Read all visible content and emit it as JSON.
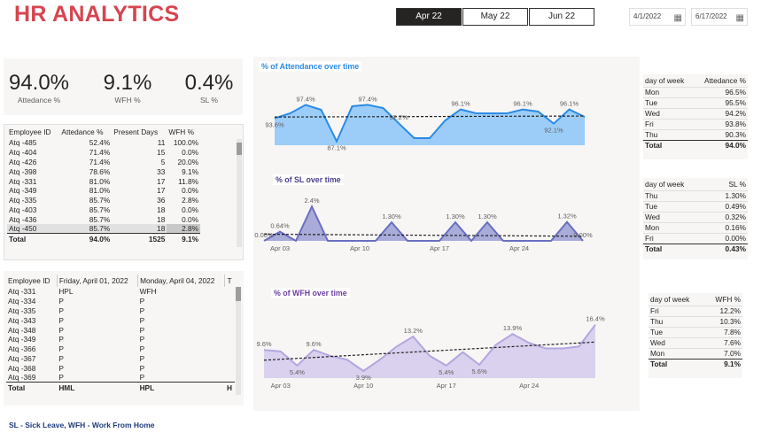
{
  "header": {
    "title": "HR ANALYTICS",
    "months": [
      "Apr 22",
      "May 22",
      "Jun 22"
    ],
    "active_month": 0,
    "start_date": "4/1/2022",
    "end_date": "6/17/2022"
  },
  "kpis": [
    {
      "value": "94.0%",
      "label": "Attedance %"
    },
    {
      "value": "9.1%",
      "label": "WFH %"
    },
    {
      "value": "0.4%",
      "label": "SL %"
    }
  ],
  "employee_table": {
    "headers": [
      "Employee ID",
      "Attedance %",
      "Present Days",
      "WFH %"
    ],
    "rows": [
      [
        "Atq -485",
        "52.4%",
        "11",
        "100.0%"
      ],
      [
        "Atq -404",
        "71.4%",
        "15",
        "0.0%"
      ],
      [
        "Atq -426",
        "71.4%",
        "5",
        "20.0%"
      ],
      [
        "Atq -398",
        "78.6%",
        "33",
        "9.1%"
      ],
      [
        "Atq -331",
        "81.0%",
        "17",
        "11.8%"
      ],
      [
        "Atq -349",
        "81.0%",
        "17",
        "0.0%"
      ],
      [
        "Atq -335",
        "85.7%",
        "36",
        "2.8%"
      ],
      [
        "Atq -403",
        "85.7%",
        "18",
        "0.0%"
      ],
      [
        "Atq -436",
        "85.7%",
        "18",
        "0.0%"
      ],
      [
        "Atq -450",
        "85.7%",
        "18",
        "2.8%"
      ]
    ],
    "total": [
      "Total",
      "94.0%",
      "1525",
      "9.1%"
    ]
  },
  "daily_table": {
    "headers": [
      "Employee ID",
      "Friday, April 01, 2022",
      "Monday, April 04, 2022",
      "T"
    ],
    "rows": [
      [
        "Atq -331",
        "HPL",
        "WFH",
        ""
      ],
      [
        "Atq -334",
        "P",
        "P",
        ""
      ],
      [
        "Atq -335",
        "P",
        "P",
        ""
      ],
      [
        "Atq -343",
        "P",
        "P",
        ""
      ],
      [
        "Atq -348",
        "P",
        "P",
        ""
      ],
      [
        "Atq -349",
        "P",
        "P",
        ""
      ],
      [
        "Atq -366",
        "P",
        "P",
        ""
      ],
      [
        "Atq -367",
        "P",
        "P",
        ""
      ],
      [
        "Atq -368",
        "P",
        "P",
        ""
      ],
      [
        "Atq -369",
        "P",
        "P",
        ""
      ]
    ],
    "total": [
      "Total",
      "HML",
      "HPL",
      "H"
    ]
  },
  "charts": {
    "attendance_title": "% of Attendance over time",
    "sl_title": "% of SL over time",
    "wfh_title": "% of WFH over time",
    "x_ticks": [
      "Apr 03",
      "Apr 10",
      "Apr 17",
      "Apr 24"
    ]
  },
  "chart_data": [
    {
      "type": "area",
      "title": "% of Attendance over time",
      "color": "#2b8be6",
      "fill": "#9ccdf8",
      "x": [
        "Apr 01",
        "Apr 04",
        "Apr 05",
        "Apr 06",
        "Apr 07",
        "Apr 08",
        "Apr 11",
        "Apr 12",
        "Apr 13",
        "Apr 14",
        "Apr 15",
        "Apr 18",
        "Apr 19",
        "Apr 20",
        "Apr 21",
        "Apr 22",
        "Apr 25",
        "Apr 26",
        "Apr 27",
        "Apr 28",
        "Apr 29"
      ],
      "values": [
        93.6,
        95.0,
        97.4,
        96.0,
        87.1,
        97.0,
        97.4,
        96.5,
        92.2,
        88.0,
        88.0,
        93.0,
        96.1,
        95.0,
        95.0,
        95.0,
        96.1,
        95.5,
        92.1,
        96.1,
        94.0
      ],
      "labels": {
        "0": "93.6%",
        "2": "97.4%",
        "4": "87.1%",
        "6": "97.4%",
        "8": "92.2%",
        "12": "96.1%",
        "16": "96.1%",
        "18": "92.1%",
        "19": "96.1%"
      },
      "ylim": [
        86,
        99
      ]
    },
    {
      "type": "area",
      "title": "% of SL over time",
      "color": "#6a6fc2",
      "fill": "#a9abd9",
      "x": [
        "Apr 01",
        "Apr 04",
        "Apr 05",
        "Apr 06",
        "Apr 07",
        "Apr 08",
        "Apr 11",
        "Apr 12",
        "Apr 13",
        "Apr 14",
        "Apr 15",
        "Apr 18",
        "Apr 19",
        "Apr 20",
        "Apr 21",
        "Apr 22",
        "Apr 25",
        "Apr 26",
        "Apr 27",
        "Apr 28",
        "Apr 29"
      ],
      "values": [
        0.0,
        0.64,
        0.0,
        2.4,
        0.0,
        0.0,
        0.0,
        0.0,
        1.3,
        0.0,
        0.0,
        0.0,
        1.3,
        0.0,
        1.3,
        0.0,
        0.0,
        0.0,
        0.0,
        1.32,
        0.0
      ],
      "labels": {
        "0": "0.00%",
        "1": "0.64%",
        "3": "2.4%",
        "8": "1.30%",
        "12": "1.30%",
        "14": "1.30%",
        "19": "1.32%",
        "20": "0.00%"
      },
      "ylim": [
        0,
        2.6
      ]
    },
    {
      "type": "area",
      "title": "% of WFH over time",
      "color": "#b4a6de",
      "fill": "#d9d1ee",
      "x": [
        "Apr 01",
        "Apr 04",
        "Apr 05",
        "Apr 06",
        "Apr 07",
        "Apr 08",
        "Apr 11",
        "Apr 12",
        "Apr 13",
        "Apr 14",
        "Apr 15",
        "Apr 18",
        "Apr 19",
        "Apr 20",
        "Apr 21",
        "Apr 22",
        "Apr 25",
        "Apr 26",
        "Apr 27",
        "Apr 28",
        "Apr 29"
      ],
      "values": [
        9.6,
        9.2,
        5.4,
        9.6,
        8.0,
        7.0,
        3.9,
        7.0,
        10.5,
        13.2,
        8.0,
        5.4,
        9.0,
        5.6,
        11.0,
        13.9,
        11.5,
        10.0,
        10.0,
        10.5,
        16.4
      ],
      "labels": {
        "0": "9.6%",
        "2": "5.4%",
        "3": "9.6%",
        "6": "3.9%",
        "9": "13.2%",
        "11": "5.4%",
        "13": "5.6%",
        "15": "13.9%",
        "20": "16.4%"
      },
      "ylim": [
        2,
        18
      ]
    }
  ],
  "dow_attendance": {
    "headers": [
      "day of week",
      "Attedance %"
    ],
    "rows": [
      [
        "Mon",
        "96.5%"
      ],
      [
        "Tue",
        "95.5%"
      ],
      [
        "Wed",
        "94.2%"
      ],
      [
        "Fri",
        "93.8%"
      ],
      [
        "Thu",
        "90.3%"
      ]
    ],
    "total": [
      "Total",
      "94.0%"
    ]
  },
  "dow_sl": {
    "headers": [
      "day of week",
      "SL %"
    ],
    "rows": [
      [
        "Thu",
        "1.30%"
      ],
      [
        "Tue",
        "0.49%"
      ],
      [
        "Wed",
        "0.32%"
      ],
      [
        "Mon",
        "0.16%"
      ],
      [
        "Fri",
        "0.00%"
      ]
    ],
    "total": [
      "Total",
      "0.43%"
    ]
  },
  "dow_wfh": {
    "headers": [
      "day of week",
      "WFH %"
    ],
    "rows": [
      [
        "Fri",
        "12.2%"
      ],
      [
        "Thu",
        "10.3%"
      ],
      [
        "Tue",
        "7.8%"
      ],
      [
        "Wed",
        "7.6%"
      ],
      [
        "Mon",
        "7.0%"
      ]
    ],
    "total": [
      "Total",
      "9.1%"
    ]
  },
  "footer": "SL - Sick Leave, WFH - Work From Home"
}
